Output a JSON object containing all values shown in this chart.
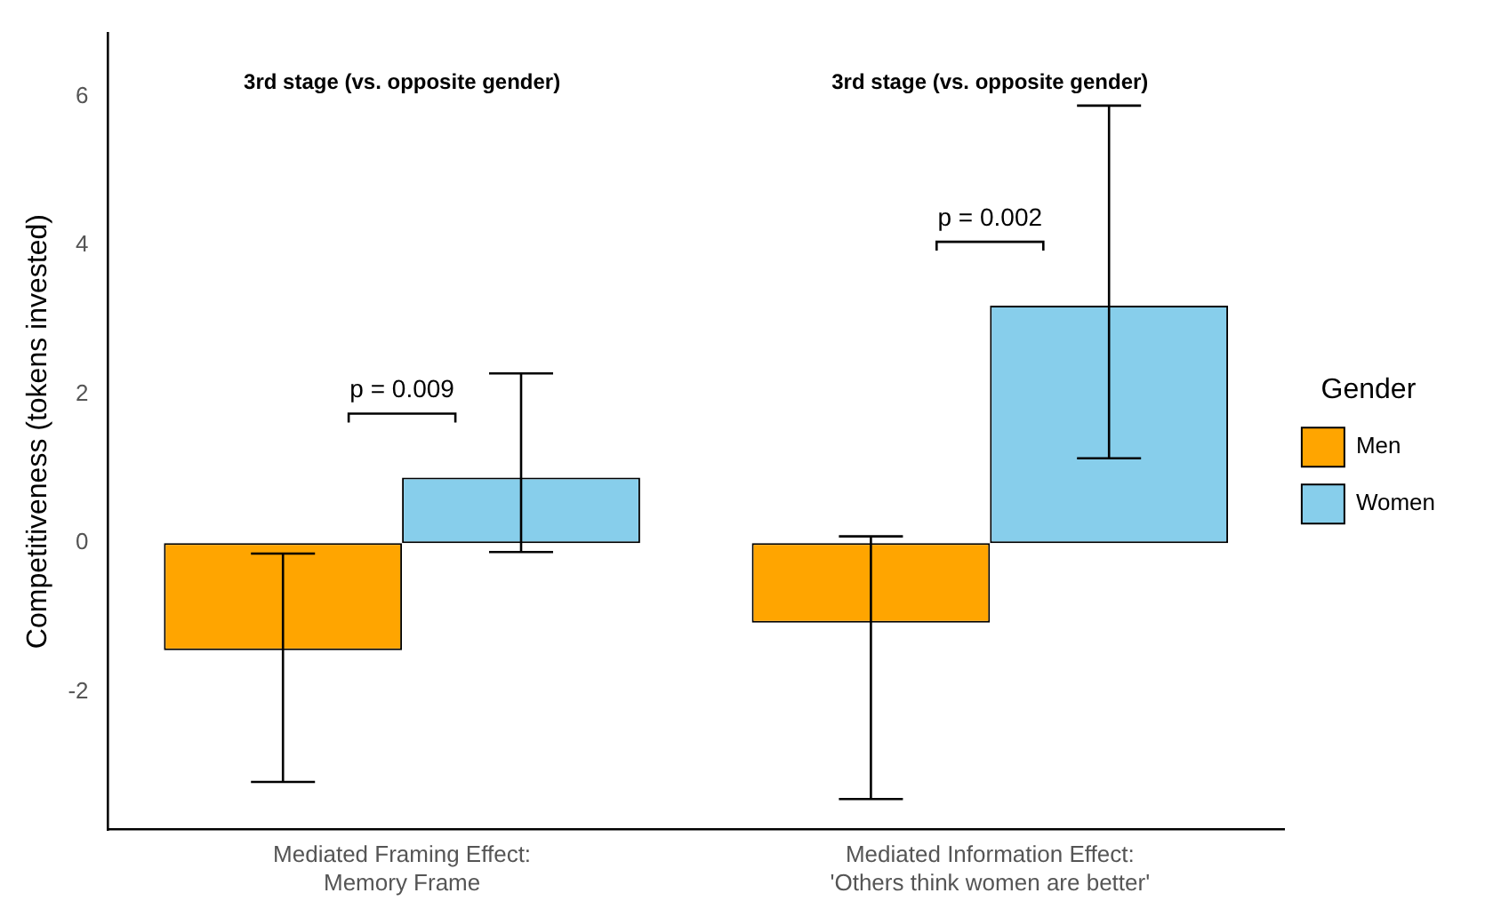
{
  "chart_data": {
    "type": "bar",
    "ylabel": "Competitiveness (tokens invested)",
    "legend_title": "Gender",
    "legend": "right",
    "grid": false,
    "categories": [
      "Mediated Framing Effect:\nMemory Frame",
      "Mediated Information Effect:\n'Others think women are better'"
    ],
    "series": [
      {
        "name": "Men",
        "color": "#ffa500",
        "values": [
          -1.44,
          -1.07
        ],
        "errors": [
          [
            -3.21,
            -0.14
          ],
          [
            -3.44,
            0.09
          ]
        ]
      },
      {
        "name": "Women",
        "color": "#87ceeb",
        "values": [
          0.88,
          3.19
        ],
        "errors": [
          [
            -0.12,
            2.28
          ],
          [
            1.14,
            5.88
          ]
        ]
      }
    ],
    "ylim": [
      -3.85,
      6.85
    ],
    "yticks": [
      -2,
      0,
      2,
      4,
      6
    ],
    "annotations": [
      "3rd stage (vs. opposite gender)",
      "3rd stage (vs. opposite gender)",
      "p = 0.009",
      "p = 0.002"
    ]
  }
}
